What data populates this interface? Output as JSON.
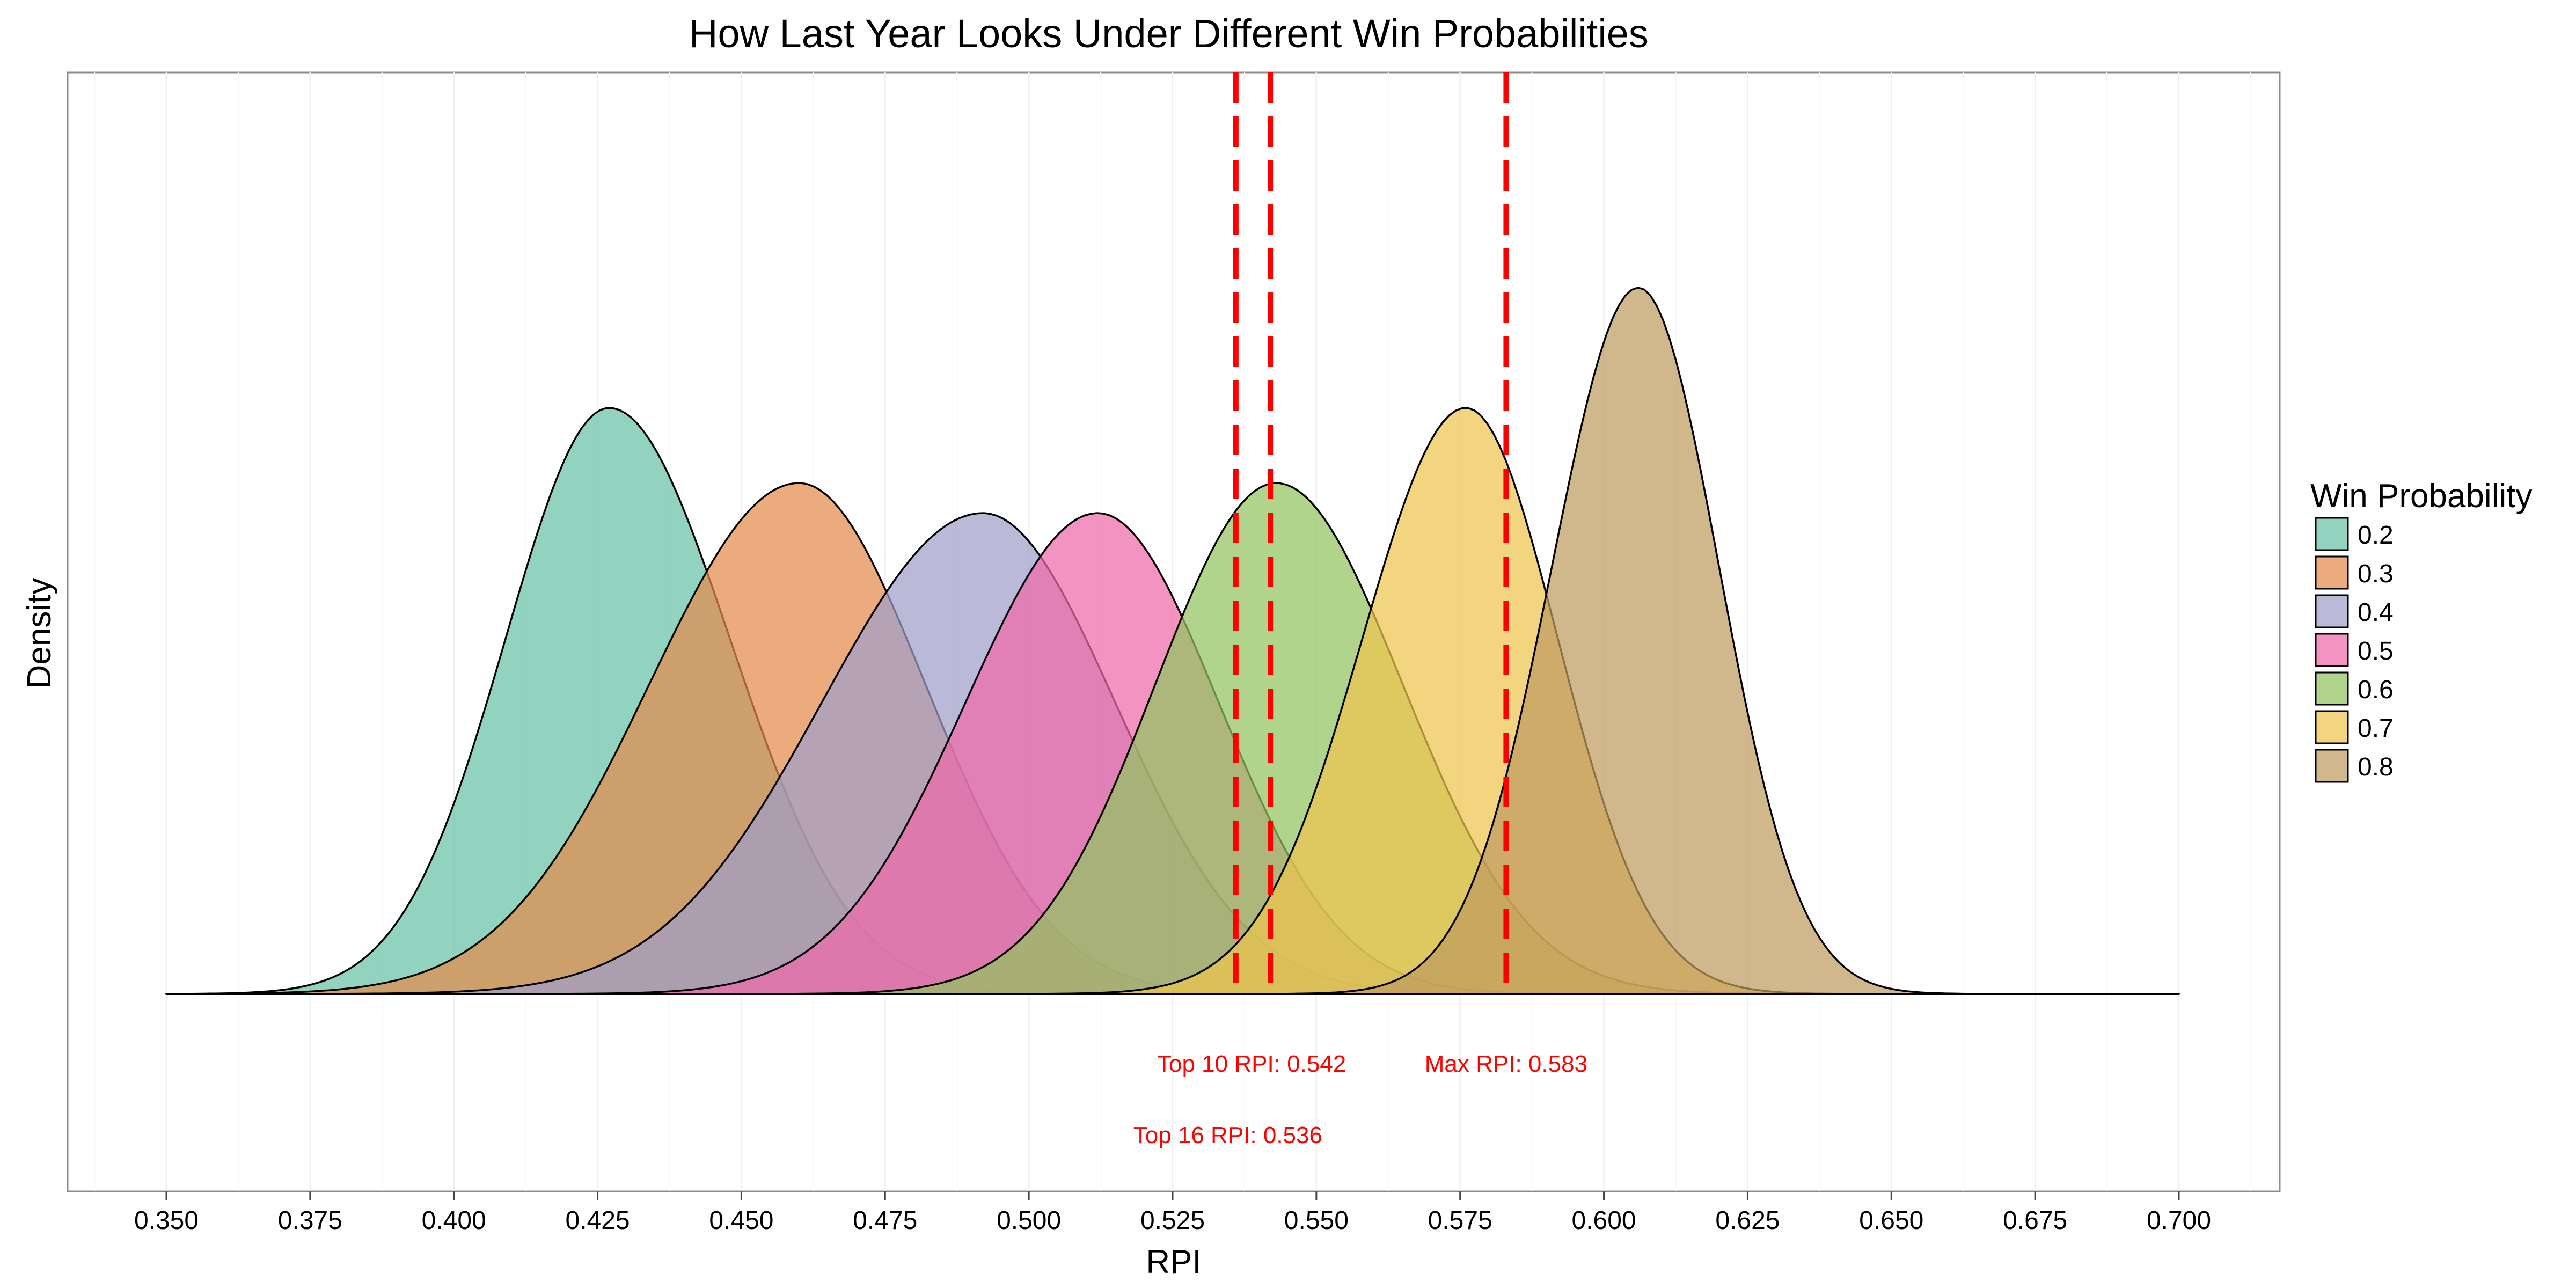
{
  "chart_data": {
    "type": "area",
    "title": "How Last Year Looks Under Different Win Probabilities",
    "xlabel": "RPI",
    "ylabel": "Density",
    "xlim": [
      0.35,
      0.7
    ],
    "x_ticks": [
      "0.350",
      "0.375",
      "0.400",
      "0.425",
      "0.450",
      "0.475",
      "0.500",
      "0.525",
      "0.550",
      "0.575",
      "0.600",
      "0.625",
      "0.650",
      "0.675",
      "0.700"
    ],
    "grid": "minimal",
    "legend": {
      "title": "Win Probability",
      "position": "right"
    },
    "series": [
      {
        "name": "0.2",
        "color": "#66C2A5",
        "peak_x": 0.427,
        "peak_density": 0.78,
        "sd_left": 0.018,
        "sd_right": 0.021
      },
      {
        "name": "0.3",
        "color": "#E58A4B",
        "peak_x": 0.46,
        "peak_density": 0.68,
        "sd_left": 0.026,
        "sd_right": 0.022
      },
      {
        "name": "0.4",
        "color": "#A09EC9",
        "peak_x": 0.492,
        "peak_density": 0.64,
        "sd_left": 0.028,
        "sd_right": 0.023
      },
      {
        "name": "0.5",
        "color": "#EF6AAA",
        "peak_x": 0.512,
        "peak_density": 0.64,
        "sd_left": 0.023,
        "sd_right": 0.021
      },
      {
        "name": "0.6",
        "color": "#92C460",
        "peak_x": 0.543,
        "peak_density": 0.68,
        "sd_left": 0.021,
        "sd_right": 0.022
      },
      {
        "name": "0.7",
        "color": "#EEC54E",
        "peak_x": 0.576,
        "peak_density": 0.78,
        "sd_left": 0.018,
        "sd_right": 0.016
      },
      {
        "name": "0.8",
        "color": "#BF9B5F",
        "peak_x": 0.606,
        "peak_density": 0.94,
        "sd_left": 0.015,
        "sd_right": 0.014
      }
    ],
    "reference_lines": [
      {
        "x": 0.536,
        "label": "Top 16 RPI: 0.536",
        "color": "#FF0000"
      },
      {
        "x": 0.542,
        "label": "Top 10 RPI: 0.542",
        "color": "#FF0000"
      },
      {
        "x": 0.583,
        "label": "Max RPI: 0.583",
        "color": "#FF0000"
      }
    ]
  }
}
